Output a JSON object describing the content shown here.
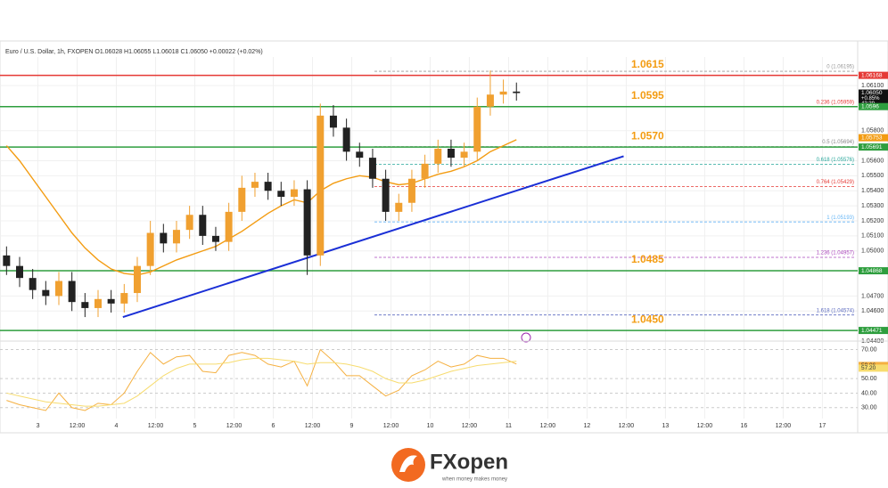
{
  "chart_data": {
    "type": "candlestick",
    "title": "Euro / U.S. Dollar, 1h, FXOPEN  O1.06028 H1.06055 L1.06018 C1.06050 +0.00022 (+0.02%)",
    "up_color": "#f0a030",
    "down_color": "#222222",
    "open": [
      1.0497,
      1.049,
      1.0482,
      1.0474,
      1.047,
      1.048,
      1.0466,
      1.0462,
      1.0468,
      1.0465,
      1.0472,
      1.049,
      1.0512,
      1.0505,
      1.0514,
      1.0524,
      1.051,
      1.0506,
      1.0526,
      1.0542,
      1.0546,
      1.054,
      1.0536,
      1.0541,
      1.0497,
      1.059,
      1.0582,
      1.0566,
      1.0562,
      1.0548,
      1.0526,
      1.0532,
      1.0548,
      1.0558,
      1.0568,
      1.0562,
      1.0566,
      1.0596,
      1.0604,
      1.0606
    ],
    "high": [
      1.0503,
      1.0496,
      1.0488,
      1.048,
      1.0486,
      1.0486,
      1.0472,
      1.0474,
      1.0474,
      1.0478,
      1.0496,
      1.052,
      1.0518,
      1.052,
      1.053,
      1.053,
      1.0516,
      1.0532,
      1.055,
      1.0552,
      1.0552,
      1.0546,
      1.0547,
      1.0547,
      1.0598,
      1.0597,
      1.0588,
      1.0572,
      1.0568,
      1.0554,
      1.0538,
      1.0554,
      1.0564,
      1.0574,
      1.0574,
      1.0572,
      1.0602,
      1.062,
      1.0614,
      1.0612
    ],
    "low": [
      1.0484,
      1.0476,
      1.0468,
      1.0464,
      1.0464,
      1.046,
      1.0456,
      1.0456,
      1.0459,
      1.0459,
      1.0466,
      1.0484,
      1.0499,
      1.0499,
      1.0508,
      1.0504,
      1.05,
      1.05,
      1.052,
      1.0536,
      1.0534,
      1.053,
      1.053,
      1.0484,
      1.049,
      1.0576,
      1.056,
      1.0556,
      1.0542,
      1.052,
      1.052,
      1.0526,
      1.0542,
      1.0552,
      1.0556,
      1.0556,
      1.056,
      1.059,
      1.0598,
      1.06
    ],
    "close": [
      1.049,
      1.0482,
      1.0474,
      1.047,
      1.048,
      1.0466,
      1.0462,
      1.0468,
      1.0465,
      1.0472,
      1.049,
      1.0512,
      1.0505,
      1.0514,
      1.0524,
      1.051,
      1.0506,
      1.0526,
      1.0542,
      1.0546,
      1.054,
      1.0536,
      1.0541,
      1.0497,
      1.059,
      1.0582,
      1.0566,
      1.0562,
      1.0548,
      1.0526,
      1.0532,
      1.0548,
      1.0558,
      1.0568,
      1.0562,
      1.0566,
      1.0596,
      1.0604,
      1.0606,
      1.0605
    ],
    "ma": {
      "color": "#f39c12",
      "values": [
        1.057,
        1.056,
        1.0548,
        1.0536,
        1.0524,
        1.0512,
        1.0502,
        1.0494,
        1.0488,
        1.0485,
        1.0484,
        1.0486,
        1.049,
        1.0494,
        1.0497,
        1.05,
        1.0503,
        1.0508,
        1.0513,
        1.0519,
        1.0525,
        1.053,
        1.0534,
        1.0532,
        1.054,
        1.0545,
        1.0548,
        1.055,
        1.0549,
        1.0546,
        1.0544,
        1.0545,
        1.0548,
        1.0551,
        1.0553,
        1.0556,
        1.056,
        1.0566,
        1.057,
        1.0574
      ]
    },
    "trendline": {
      "color": "#1a2fd6",
      "x": [
        8.9,
        47.2
      ],
      "y": [
        1.0456,
        1.0563
      ]
    },
    "xlim": [
      -0.5,
      65.1
    ],
    "ylim": [
      1.0443,
      1.0629
    ],
    "xticks": [
      {
        "value": 2.4,
        "label": "3"
      },
      {
        "value": 5.4,
        "label": "12:00"
      },
      {
        "value": 8.4,
        "label": "4"
      },
      {
        "value": 11.4,
        "label": "12:00"
      },
      {
        "value": 14.4,
        "label": "5"
      },
      {
        "value": 17.4,
        "label": "12:00"
      },
      {
        "value": 20.4,
        "label": "6"
      },
      {
        "value": 23.4,
        "label": "12:00"
      },
      {
        "value": 26.4,
        "label": "9"
      },
      {
        "value": 29.4,
        "label": "12:00"
      },
      {
        "value": 32.4,
        "label": "10"
      },
      {
        "value": 35.4,
        "label": "12:00"
      },
      {
        "value": 38.4,
        "label": "11"
      },
      {
        "value": 41.4,
        "label": "12:00"
      },
      {
        "value": 44.4,
        "label": "12"
      },
      {
        "value": 47.4,
        "label": "12:00"
      },
      {
        "value": 50.4,
        "label": "13"
      },
      {
        "value": 53.4,
        "label": "12:00"
      },
      {
        "value": 56.4,
        "label": "16"
      },
      {
        "value": 59.4,
        "label": "12:00"
      },
      {
        "value": 62.4,
        "label": "17"
      }
    ],
    "yticks": [
      {
        "value": 1.061,
        "label": "1.06100"
      },
      {
        "value": 1.058,
        "label": "1.05800"
      },
      {
        "value": 1.056,
        "label": "1.05600"
      },
      {
        "value": 1.055,
        "label": "1.05500"
      },
      {
        "value": 1.054,
        "label": "1.05400"
      },
      {
        "value": 1.053,
        "label": "1.05300"
      },
      {
        "value": 1.052,
        "label": "1.05200"
      },
      {
        "value": 1.051,
        "label": "1.05100"
      },
      {
        "value": 1.05,
        "label": "1.05000"
      },
      {
        "value": 1.047,
        "label": "1.04700"
      },
      {
        "value": 1.046,
        "label": "1.04600"
      },
      {
        "value": 1.044,
        "label": "1.04400"
      }
    ],
    "levels": [
      {
        "price": 1.06168,
        "text": "1.0615",
        "color": "#e53935"
      },
      {
        "price": 1.0596,
        "text": "1.0595",
        "color": "#2e9e3e"
      },
      {
        "price": 1.05691,
        "text": "1.0570",
        "color": "#2e9e3e"
      },
      {
        "price": 1.04868,
        "text": "1.0485",
        "color": "#2e9e3e"
      },
      {
        "price": 1.04471,
        "text": "1.0450",
        "color": "#2e9e3e"
      }
    ],
    "fib": [
      {
        "value": 1.06195,
        "label": "0 (1.06195)",
        "color": "#999999"
      },
      {
        "value": 1.05959,
        "label": "0.236 (1.05959)",
        "color": "#e53935"
      },
      {
        "value": 1.05694,
        "label": "0.5 (1.05694)",
        "color": "#888888"
      },
      {
        "value": 1.05576,
        "label": "0.618 (1.05576)",
        "color": "#26a69a"
      },
      {
        "value": 1.05429,
        "label": "0.764 (1.05429)",
        "color": "#e53935"
      },
      {
        "value": 1.05193,
        "label": "1 (1.05193)",
        "color": "#64b5f6"
      },
      {
        "value": 1.04957,
        "label": "1.236 (1.04957)",
        "color": "#ab47bc"
      },
      {
        "value": 1.04574,
        "label": "1.618 (1.04574)",
        "color": "#5c6bc0"
      }
    ],
    "badges": [
      {
        "value": 1.06168,
        "color": "#e53935"
      },
      {
        "value": 1.0605,
        "label": "1.06050",
        "color": "#111111",
        "change": "+0.85%",
        "timer": "43:39"
      },
      {
        "value": 1.0596,
        "color": "#2e9e3e"
      },
      {
        "value": 1.05753,
        "color": "#f39c12"
      },
      {
        "value": 1.05691,
        "color": "#2e9e3e"
      },
      {
        "value": 1.04868,
        "color": "#2e9e3e"
      },
      {
        "value": 1.04471,
        "color": "#2e9e3e"
      }
    ],
    "rsi": {
      "ylim": [
        23.7,
        72.8
      ],
      "yticks": [
        {
          "value": 70,
          "label": "70.00"
        },
        {
          "value": 50,
          "label": "50.00"
        },
        {
          "value": 40,
          "label": "40.00"
        },
        {
          "value": 30,
          "label": "30.00"
        }
      ],
      "series": [
        {
          "color": "#f5b041",
          "values": [
            35,
            32,
            30,
            28,
            40,
            30,
            28,
            33,
            32,
            40,
            55,
            68,
            60,
            65,
            66,
            55,
            54,
            66,
            68,
            66,
            60,
            58,
            62,
            45,
            70,
            62,
            52,
            52,
            45,
            38,
            42,
            52,
            56,
            62,
            58,
            60,
            66,
            64,
            64,
            60
          ]
        },
        {
          "color": "#f7dc6f",
          "values": [
            40,
            38,
            36,
            34,
            33,
            32,
            31,
            31,
            32,
            33,
            38,
            45,
            52,
            57,
            60,
            60,
            60,
            61,
            63,
            64,
            64,
            63,
            62,
            60,
            61,
            61,
            60,
            58,
            55,
            50,
            47,
            47,
            49,
            52,
            55,
            57,
            59,
            60,
            61,
            62
          ]
        }
      ],
      "badges": [
        {
          "value": 59.06,
          "color": "#f5b041"
        },
        {
          "value": 57.2,
          "label": "57.20",
          "color": "#f7dc6f"
        }
      ]
    },
    "logo": {
      "name": "FXopen",
      "tagline": "when money makes money"
    }
  }
}
